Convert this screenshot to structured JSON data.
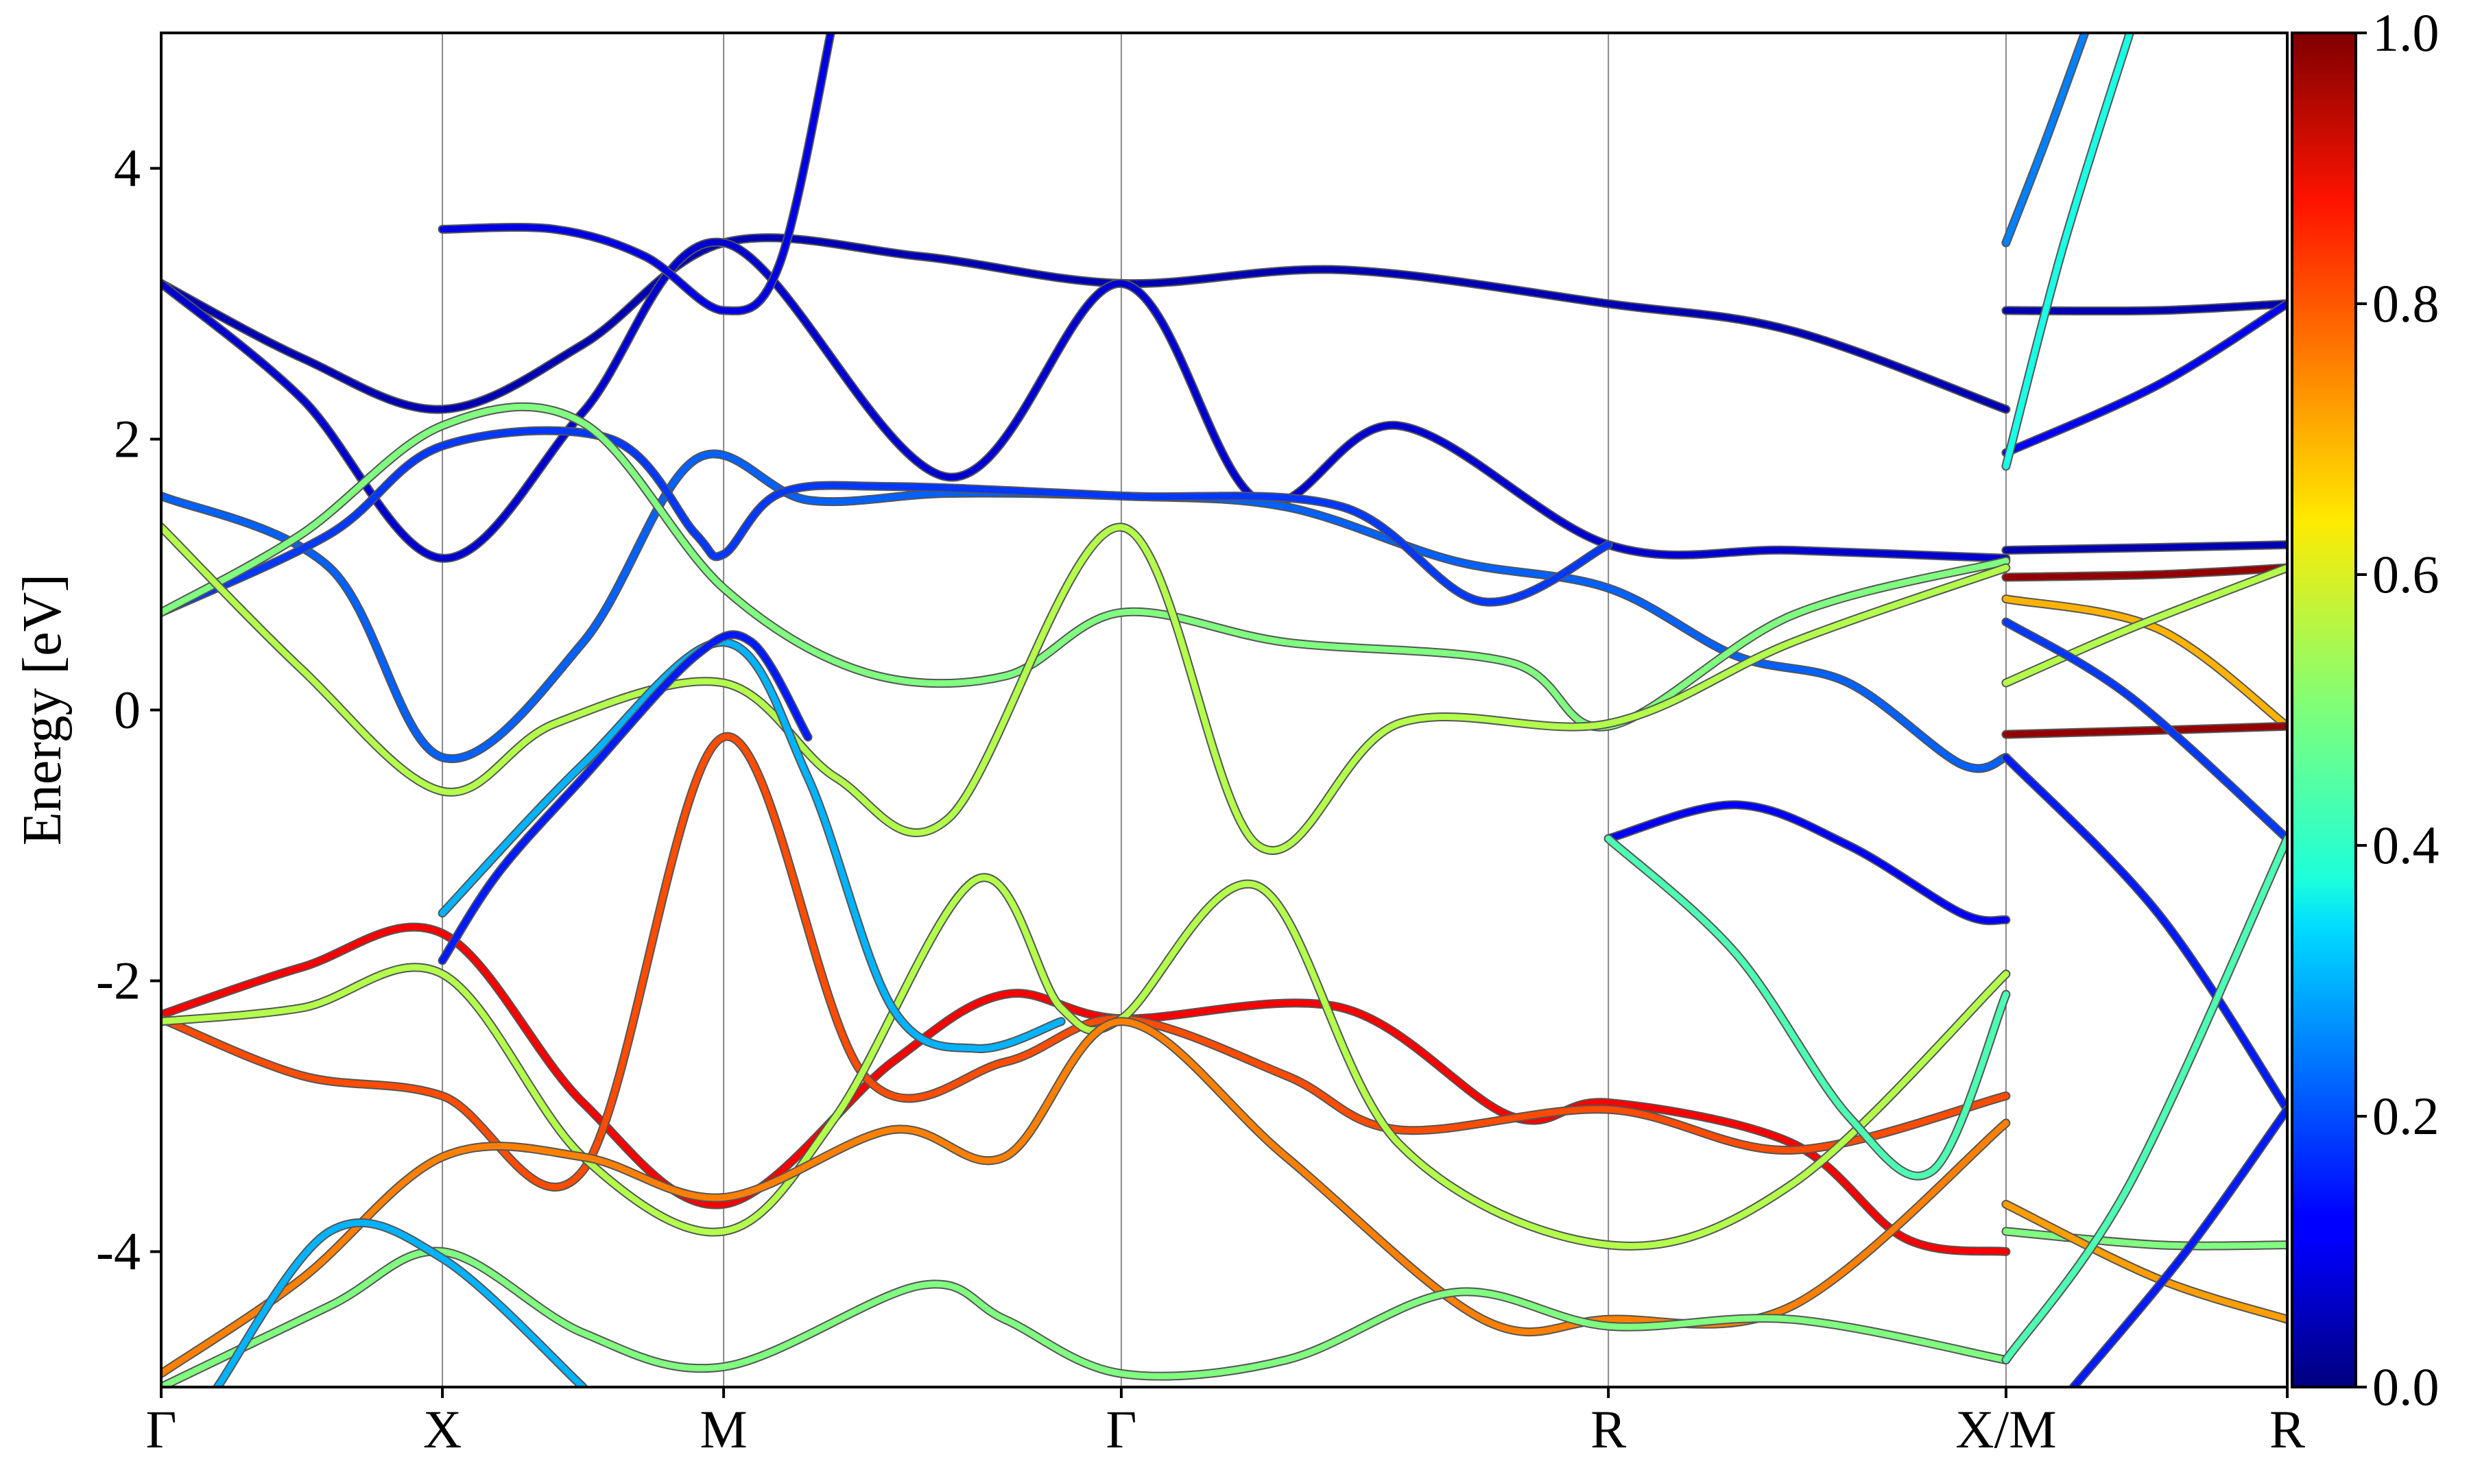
{
  "chart_data": {
    "type": "line",
    "ylabel": "Energy [eV]",
    "ylim": [
      -5,
      5
    ],
    "y_ticks": [
      {
        "value": 4,
        "label": "4"
      },
      {
        "value": 2,
        "label": "2"
      },
      {
        "value": 0,
        "label": "0"
      },
      {
        "value": -2,
        "label": "-2"
      },
      {
        "value": -4,
        "label": "-4"
      }
    ],
    "k_path": [
      {
        "label": "Γ",
        "position": 0.0
      },
      {
        "label": "X",
        "position": 0.5
      },
      {
        "label": "M",
        "position": 1.0
      },
      {
        "label": "Γ",
        "position": 1.707
      },
      {
        "label": "R",
        "position": 2.573
      },
      {
        "label": "X/M",
        "position": 3.28
      },
      {
        "label": "R",
        "position": 3.78
      }
    ],
    "colorbar": {
      "colormap": "jet",
      "range": [
        0.0,
        1.0
      ],
      "ticks": [
        {
          "value": 0.0,
          "label": "0.0"
        },
        {
          "value": 0.2,
          "label": "0.2"
        },
        {
          "value": 0.4,
          "label": "0.4"
        },
        {
          "value": 0.6,
          "label": "0.6"
        },
        {
          "value": 0.8,
          "label": "0.8"
        },
        {
          "value": 1.0,
          "label": "1.0"
        }
      ]
    },
    "grid": "vertical lines at high-symmetry points",
    "bands": [
      {
        "points": [
          [
            0,
            3.15
          ],
          [
            0.25,
            2.6
          ],
          [
            0.5,
            2.22
          ],
          [
            0.75,
            2.7
          ],
          [
            1.0,
            3.45
          ],
          [
            1.35,
            3.35
          ],
          [
            1.707,
            3.15
          ],
          [
            2.1,
            3.25
          ],
          [
            2.573,
            3.0
          ],
          [
            2.9,
            2.8
          ],
          [
            3.28,
            2.22
          ]
        ],
        "weight": 0.05
      },
      {
        "points": [
          [
            0,
            3.15
          ],
          [
            0.25,
            2.3
          ],
          [
            0.5,
            1.12
          ],
          [
            0.75,
            2.2
          ],
          [
            1.0,
            3.45
          ],
          [
            1.4,
            1.72
          ],
          [
            1.707,
            3.15
          ],
          [
            1.95,
            1.55
          ],
          [
            2.2,
            2.1
          ],
          [
            2.573,
            1.22
          ],
          [
            2.9,
            1.18
          ],
          [
            3.28,
            1.12
          ]
        ],
        "weight": 0.08
      },
      {
        "points": [
          [
            0.5,
            3.55
          ],
          [
            0.7,
            3.55
          ],
          [
            0.86,
            3.35
          ],
          [
            1.0,
            2.95
          ],
          [
            1.1,
            3.3
          ],
          [
            1.2,
            5.2
          ]
        ],
        "weight": 0.1
      },
      {
        "points": [
          [
            0,
            1.58
          ],
          [
            0.3,
            1.05
          ],
          [
            0.5,
            -0.35
          ],
          [
            0.75,
            0.5
          ],
          [
            0.95,
            1.85
          ],
          [
            1.15,
            1.55
          ],
          [
            1.4,
            1.6
          ],
          [
            1.707,
            1.58
          ],
          [
            2.0,
            1.5
          ],
          [
            2.3,
            1.1
          ],
          [
            2.573,
            0.9
          ],
          [
            2.8,
            0.4
          ],
          [
            3.0,
            0.2
          ],
          [
            3.2,
            -0.4
          ],
          [
            3.28,
            -0.35
          ]
        ],
        "weight": 0.22
      },
      {
        "points": [
          [
            0,
            0.72
          ],
          [
            0.3,
            1.3
          ],
          [
            0.5,
            1.95
          ],
          [
            0.8,
            2.0
          ],
          [
            0.95,
            1.3
          ],
          [
            1.0,
            1.15
          ],
          [
            1.1,
            1.6
          ],
          [
            1.3,
            1.65
          ],
          [
            1.707,
            1.58
          ],
          [
            2.1,
            1.5
          ],
          [
            2.35,
            0.8
          ],
          [
            2.573,
            1.22
          ]
        ],
        "weight": 0.18
      },
      {
        "points": [
          [
            0,
            0.72
          ],
          [
            0.25,
            1.3
          ],
          [
            0.5,
            2.1
          ],
          [
            0.75,
            2.12
          ],
          [
            1.0,
            0.9
          ],
          [
            1.25,
            0.28
          ],
          [
            1.5,
            0.25
          ],
          [
            1.707,
            0.72
          ],
          [
            2.0,
            0.5
          ],
          [
            2.4,
            0.35
          ],
          [
            2.573,
            -0.12
          ],
          [
            2.9,
            0.7
          ],
          [
            3.28,
            1.1
          ]
        ],
        "weight": 0.5
      },
      {
        "points": [
          [
            0,
            1.35
          ],
          [
            0.25,
            0.3
          ],
          [
            0.5,
            -0.6
          ],
          [
            0.7,
            -0.1
          ],
          [
            1.0,
            0.2
          ],
          [
            1.2,
            -0.5
          ],
          [
            1.4,
            -0.8
          ],
          [
            1.707,
            1.35
          ],
          [
            1.95,
            -1.0
          ],
          [
            2.2,
            -0.1
          ],
          [
            2.573,
            -0.1
          ],
          [
            2.9,
            0.5
          ],
          [
            3.28,
            1.05
          ]
        ],
        "weight": 0.55
      },
      {
        "points": [
          [
            0,
            -2.25
          ],
          [
            0.25,
            -1.9
          ],
          [
            0.5,
            -1.65
          ],
          [
            0.75,
            -2.9
          ],
          [
            1.0,
            -3.65
          ],
          [
            1.3,
            -2.6
          ],
          [
            1.5,
            -2.1
          ],
          [
            1.707,
            -2.28
          ],
          [
            2.1,
            -2.2
          ],
          [
            2.4,
            -3.0
          ],
          [
            2.573,
            -2.9
          ],
          [
            2.9,
            -3.2
          ],
          [
            3.1,
            -3.9
          ],
          [
            3.28,
            -4.0
          ]
        ],
        "weight": 0.88
      },
      {
        "points": [
          [
            0,
            -2.28
          ],
          [
            0.25,
            -2.7
          ],
          [
            0.5,
            -2.85
          ],
          [
            0.75,
            -3.4
          ],
          [
            1.0,
            -0.2
          ],
          [
            1.25,
            -2.7
          ],
          [
            1.5,
            -2.6
          ],
          [
            1.707,
            -2.28
          ],
          [
            2.0,
            -2.7
          ],
          [
            2.2,
            -3.1
          ],
          [
            2.573,
            -2.95
          ],
          [
            2.9,
            -3.25
          ],
          [
            3.28,
            -2.85
          ]
        ],
        "weight": 0.8
      },
      {
        "points": [
          [
            0,
            -2.3
          ],
          [
            0.25,
            -2.2
          ],
          [
            0.5,
            -1.95
          ],
          [
            0.75,
            -3.3
          ],
          [
            1.0,
            -3.85
          ],
          [
            1.2,
            -3.0
          ],
          [
            1.45,
            -1.25
          ],
          [
            1.6,
            -2.2
          ],
          [
            1.707,
            -2.28
          ],
          [
            1.95,
            -1.3
          ],
          [
            2.2,
            -3.2
          ],
          [
            2.573,
            -3.95
          ],
          [
            2.9,
            -3.5
          ],
          [
            3.28,
            -1.95
          ]
        ],
        "weight": 0.55
      },
      {
        "points": [
          [
            0,
            -4.9
          ],
          [
            0.25,
            -4.2
          ],
          [
            0.5,
            -3.3
          ],
          [
            0.75,
            -3.3
          ],
          [
            1.0,
            -3.6
          ],
          [
            1.3,
            -3.1
          ],
          [
            1.5,
            -3.3
          ],
          [
            1.707,
            -2.3
          ],
          [
            2.0,
            -3.3
          ],
          [
            2.35,
            -4.5
          ],
          [
            2.573,
            -4.5
          ],
          [
            2.9,
            -4.4
          ],
          [
            3.28,
            -3.05
          ]
        ],
        "weight": 0.75
      },
      {
        "points": [
          [
            0,
            -5.0
          ],
          [
            0.3,
            -4.4
          ],
          [
            0.5,
            -4.0
          ],
          [
            0.75,
            -4.6
          ],
          [
            1.0,
            -4.85
          ],
          [
            1.35,
            -4.25
          ],
          [
            1.5,
            -4.5
          ],
          [
            1.707,
            -4.9
          ],
          [
            2.0,
            -4.8
          ],
          [
            2.3,
            -4.3
          ],
          [
            2.573,
            -4.55
          ],
          [
            2.9,
            -4.5
          ],
          [
            3.28,
            -4.8
          ]
        ],
        "weight": 0.5
      },
      {
        "points": [
          [
            0.1,
            -5.0
          ],
          [
            0.3,
            -3.85
          ],
          [
            0.5,
            -4.05
          ],
          [
            0.75,
            -5.0
          ]
        ],
        "weight": 0.3
      },
      {
        "points": [
          [
            0.5,
            -1.5
          ],
          [
            0.75,
            -0.4
          ],
          [
            1.0,
            0.5
          ],
          [
            1.15,
            -0.5
          ],
          [
            1.3,
            -2.2
          ],
          [
            1.45,
            -2.5
          ],
          [
            1.6,
            -2.3
          ]
        ],
        "weight": 0.3
      },
      {
        "points": [
          [
            0.5,
            -1.85
          ],
          [
            0.6,
            -1.2
          ],
          [
            0.75,
            -0.5
          ],
          [
            0.95,
            0.4
          ],
          [
            1.05,
            0.5
          ],
          [
            1.15,
            -0.2
          ]
        ],
        "weight": 0.15
      },
      {
        "points": [
          [
            2.573,
            -0.95
          ],
          [
            2.8,
            -0.7
          ],
          [
            3.0,
            -1.0
          ],
          [
            3.2,
            -1.5
          ],
          [
            3.28,
            -1.55
          ]
        ],
        "weight": 0.12
      },
      {
        "points": [
          [
            2.573,
            -0.95
          ],
          [
            2.8,
            -1.8
          ],
          [
            3.0,
            -3.0
          ],
          [
            3.15,
            -3.4
          ],
          [
            3.28,
            -2.1
          ]
        ],
        "weight": 0.45
      },
      {
        "points": [
          [
            3.28,
            2.95
          ],
          [
            3.55,
            2.95
          ],
          [
            3.78,
            3.0
          ]
        ],
        "weight": 0.05
      },
      {
        "points": [
          [
            3.28,
            1.9
          ],
          [
            3.55,
            2.4
          ],
          [
            3.78,
            3.0
          ]
        ],
        "weight": 0.12
      },
      {
        "points": [
          [
            3.28,
            1.18
          ],
          [
            3.55,
            1.2
          ],
          [
            3.78,
            1.22
          ]
        ],
        "weight": 0.05
      },
      {
        "points": [
          [
            3.28,
            0.98
          ],
          [
            3.55,
            1.0
          ],
          [
            3.78,
            1.05
          ]
        ],
        "weight": 0.98
      },
      {
        "points": [
          [
            3.28,
            0.82
          ],
          [
            3.55,
            0.6
          ],
          [
            3.78,
            -0.12
          ]
        ],
        "weight": 0.7
      },
      {
        "points": [
          [
            3.28,
            0.2
          ],
          [
            3.5,
            0.6
          ],
          [
            3.78,
            1.05
          ]
        ],
        "weight": 0.55
      },
      {
        "points": [
          [
            3.28,
            -0.18
          ],
          [
            3.55,
            -0.15
          ],
          [
            3.78,
            -0.12
          ]
        ],
        "weight": 0.98
      },
      {
        "points": [
          [
            3.28,
            0.65
          ],
          [
            3.5,
            0.1
          ],
          [
            3.78,
            -0.95
          ]
        ],
        "weight": 0.18
      },
      {
        "points": [
          [
            3.28,
            -0.35
          ],
          [
            3.55,
            -1.5
          ],
          [
            3.78,
            -2.95
          ]
        ],
        "weight": 0.15
      },
      {
        "points": [
          [
            3.28,
            -3.85
          ],
          [
            3.55,
            -3.95
          ],
          [
            3.78,
            -3.95
          ]
        ],
        "weight": 0.5
      },
      {
        "points": [
          [
            3.28,
            -3.65
          ],
          [
            3.55,
            -4.2
          ],
          [
            3.78,
            -4.5
          ]
        ],
        "weight": 0.72
      },
      {
        "points": [
          [
            3.28,
            -4.8
          ],
          [
            3.5,
            -3.5
          ],
          [
            3.78,
            -0.95
          ]
        ],
        "weight": 0.45
      },
      {
        "points": [
          [
            3.4,
            -5.0
          ],
          [
            3.6,
            -4.0
          ],
          [
            3.78,
            -2.95
          ]
        ],
        "weight": 0.15
      },
      {
        "points": [
          [
            3.28,
            3.45
          ],
          [
            3.35,
            4.2
          ],
          [
            3.42,
            5.0
          ]
        ],
        "weight": 0.25
      },
      {
        "points": [
          [
            3.28,
            1.8
          ],
          [
            3.38,
            3.4
          ],
          [
            3.5,
            5.0
          ]
        ],
        "weight": 0.4
      }
    ]
  }
}
